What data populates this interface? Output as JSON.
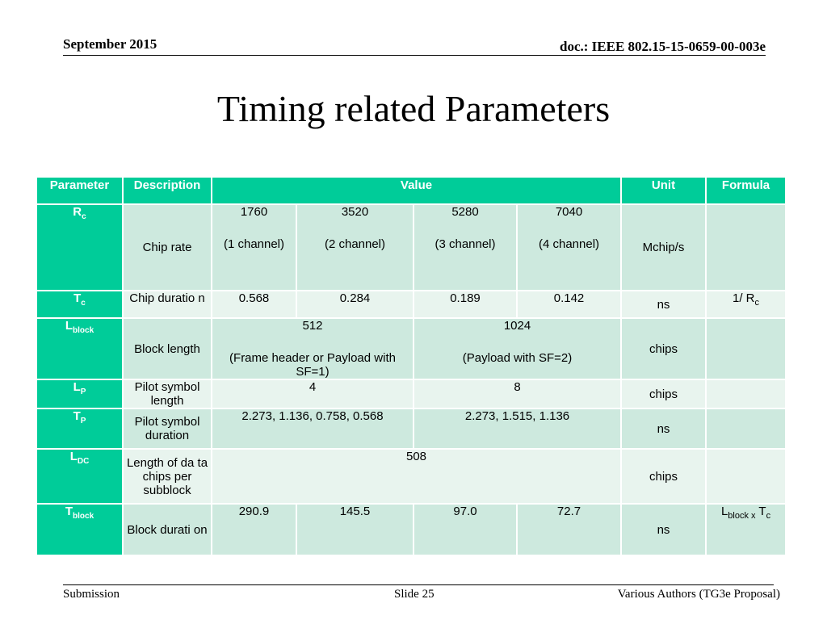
{
  "header": {
    "date": "September 2015",
    "doc_id": "doc.: IEEE 802.15-15-0659-00-003e"
  },
  "title": "Timing related Parameters",
  "table": {
    "columns": [
      "Parameter",
      "Description",
      "Value",
      "Unit",
      "Formula"
    ],
    "rows": [
      {
        "param": {
          "base": "R",
          "sub": "c"
        },
        "description": "Chip rate",
        "values": [
          "1760",
          "3520",
          "5280",
          "7040"
        ],
        "value_notes": [
          "(1 channel)",
          "(2 channel)",
          "(3 channel)",
          "(4 channel)"
        ],
        "unit": "Mchip/s",
        "formula": ""
      },
      {
        "param": {
          "base": "T",
          "sub": "c"
        },
        "description": "Chip duratio n",
        "values": [
          "0.568",
          "0.284",
          "0.189",
          "0.142"
        ],
        "unit": "ns",
        "formula": {
          "base": "1/ R",
          "sub": "c"
        }
      },
      {
        "param": {
          "base": "L",
          "sub": "block"
        },
        "description": "Block length",
        "values": [
          "512",
          "1024"
        ],
        "value_notes": [
          "(Frame header or Payload with SF=1)",
          "(Payload with SF=2)"
        ],
        "unit": "chips",
        "formula": ""
      },
      {
        "param": {
          "base": "L",
          "sub": "P"
        },
        "description": "Pilot symbol length",
        "values": [
          "4",
          "8"
        ],
        "unit": "chips",
        "formula": ""
      },
      {
        "param": {
          "base": "T",
          "sub": "P"
        },
        "description": "Pilot symbol duration",
        "values": [
          "2.273, 1.136, 0.758, 0.568",
          "2.273, 1.515, 1.136"
        ],
        "unit": "ns",
        "formula": ""
      },
      {
        "param": {
          "base": "L",
          "sub": "DC"
        },
        "description": "Length of da ta chips per subblock",
        "values": [
          "508"
        ],
        "unit": "chips",
        "formula": ""
      },
      {
        "param": {
          "base": "T",
          "sub": "block"
        },
        "description": "Block durati on",
        "values": [
          "290.9",
          "145.5",
          "97.0",
          "72.7"
        ],
        "unit": "ns",
        "formula": {
          "base1": "L",
          "sub1": "block x",
          "base2": " T",
          "sub2": "c"
        }
      }
    ]
  },
  "footer": {
    "left": "Submission",
    "center": "Slide 25",
    "right": "Various Authors (TG3e Proposal)"
  },
  "colors": {
    "header_fill": "#00cc99",
    "row_dark": "#cde9de",
    "row_light": "#e8f4ee"
  }
}
